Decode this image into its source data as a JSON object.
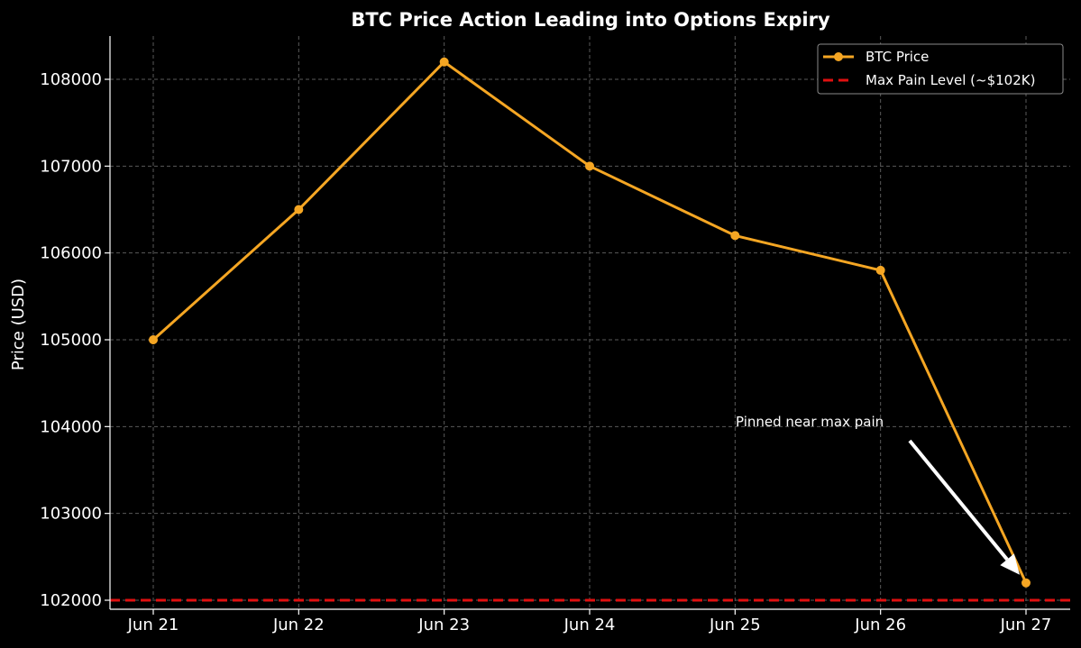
{
  "chart_data": {
    "type": "line",
    "title": "BTC Price Action Leading into Options Expiry",
    "xlabel": "",
    "ylabel": "Price (USD)",
    "categories": [
      "Jun 21",
      "Jun 22",
      "Jun 23",
      "Jun 24",
      "Jun 25",
      "Jun 26",
      "Jun 27"
    ],
    "yticks": [
      102000,
      103000,
      104000,
      105000,
      106000,
      107000,
      108000
    ],
    "ylim": [
      101900,
      108500
    ],
    "grid": true,
    "legend_position": "top-right",
    "series": [
      {
        "name": "BTC Price",
        "values": [
          105000,
          106500,
          108200,
          107000,
          106200,
          105800,
          102200
        ],
        "color": "#f5a623",
        "marker": "circle"
      }
    ],
    "reference_lines": [
      {
        "name": "Max Pain Level (~$102K)",
        "y": 102000,
        "color": "#e01010",
        "style": "dashed"
      }
    ],
    "annotations": [
      {
        "text": "Pinned near max pain",
        "target_category": "Jun 27",
        "target_value": 102200,
        "arrow_color": "#ffffff"
      }
    ]
  }
}
